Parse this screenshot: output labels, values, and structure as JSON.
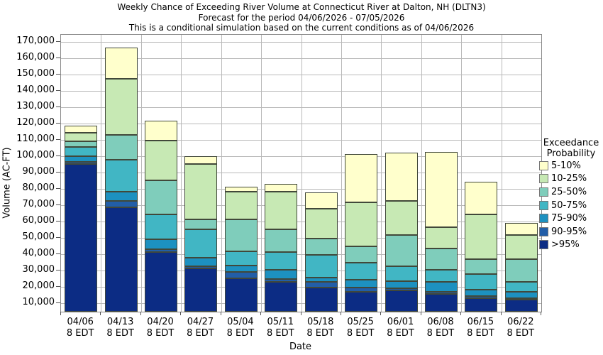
{
  "title": {
    "line1": "Weekly Chance of Exceeding River Volume at Connecticut River at Dalton, NH (DLTN3)",
    "line2": "Forecast for the period 04/06/2026 - 07/05/2026",
    "line3": "This is a conditional simulation based on the current conditions as of 04/06/2026"
  },
  "axes": {
    "y_title": "Volume (AC-FT)",
    "x_title": "Date"
  },
  "legend": {
    "title_line1": "Exceedance",
    "title_line2": "Probability",
    "position": "right",
    "items": [
      {
        "label": "5-10%",
        "color": "#ffffcc"
      },
      {
        "label": "10-25%",
        "color": "#c7e9b4"
      },
      {
        "label": "25-50%",
        "color": "#7fcdbb"
      },
      {
        "label": "50-75%",
        "color": "#41b6c4"
      },
      {
        "label": "75-90%",
        "color": "#1d91c0"
      },
      {
        "label": "90-95%",
        "color": "#225ea8"
      },
      {
        "label": ">95%",
        "color": "#0c2c84"
      }
    ]
  },
  "chart_data": {
    "type": "bar",
    "stacked": true,
    "grid": true,
    "legend_position": "right",
    "categories": [
      "04/06",
      "04/13",
      "04/20",
      "04/27",
      "05/04",
      "05/11",
      "05/18",
      "05/25",
      "06/01",
      "06/08",
      "06/15",
      "06/22"
    ],
    "category_sub_label": "8 EDT",
    "baseline": 4650,
    "ylim": [
      4650,
      174160
    ],
    "y_ticks": [
      10000,
      20000,
      30000,
      40000,
      50000,
      60000,
      70000,
      80000,
      90000,
      100000,
      110000,
      120000,
      130000,
      140000,
      150000,
      160000,
      170000
    ],
    "series": [
      {
        "name": ">95%",
        "color": "#0c2c84",
        "cumulative_tops": [
          95000,
          68500,
          41000,
          31000,
          25000,
          23000,
          19500,
          17000,
          17500,
          15500,
          13000,
          12000
        ]
      },
      {
        "name": "90-95%",
        "color": "#225ea8",
        "cumulative_tops": [
          96500,
          72500,
          43000,
          32500,
          29000,
          24500,
          23000,
          19500,
          19000,
          17000,
          14000,
          13000
        ]
      },
      {
        "name": "75-90%",
        "color": "#1d91c0",
        "cumulative_tops": [
          100000,
          78000,
          49000,
          37500,
          33000,
          30500,
          25500,
          24000,
          23500,
          23000,
          18000,
          17000
        ]
      },
      {
        "name": "50-75%",
        "color": "#41b6c4",
        "cumulative_tops": [
          105500,
          97500,
          64000,
          55000,
          41500,
          41000,
          39500,
          34500,
          32500,
          30500,
          27500,
          23000
        ]
      },
      {
        "name": "25-50%",
        "color": "#7fcdbb",
        "cumulative_tops": [
          109000,
          113000,
          85000,
          61000,
          61000,
          55000,
          49500,
          44500,
          51500,
          43500,
          37000,
          37000
        ]
      },
      {
        "name": "10-25%",
        "color": "#c7e9b4",
        "cumulative_tops": [
          114000,
          147000,
          109500,
          95000,
          78000,
          78000,
          67500,
          71500,
          72500,
          56500,
          64000,
          51500
        ]
      },
      {
        "name": "5-10%",
        "color": "#ffffcc",
        "cumulative_tops": [
          118500,
          166500,
          121500,
          100000,
          81000,
          83000,
          77500,
          101000,
          102000,
          102500,
          84000,
          59000
        ]
      }
    ]
  }
}
